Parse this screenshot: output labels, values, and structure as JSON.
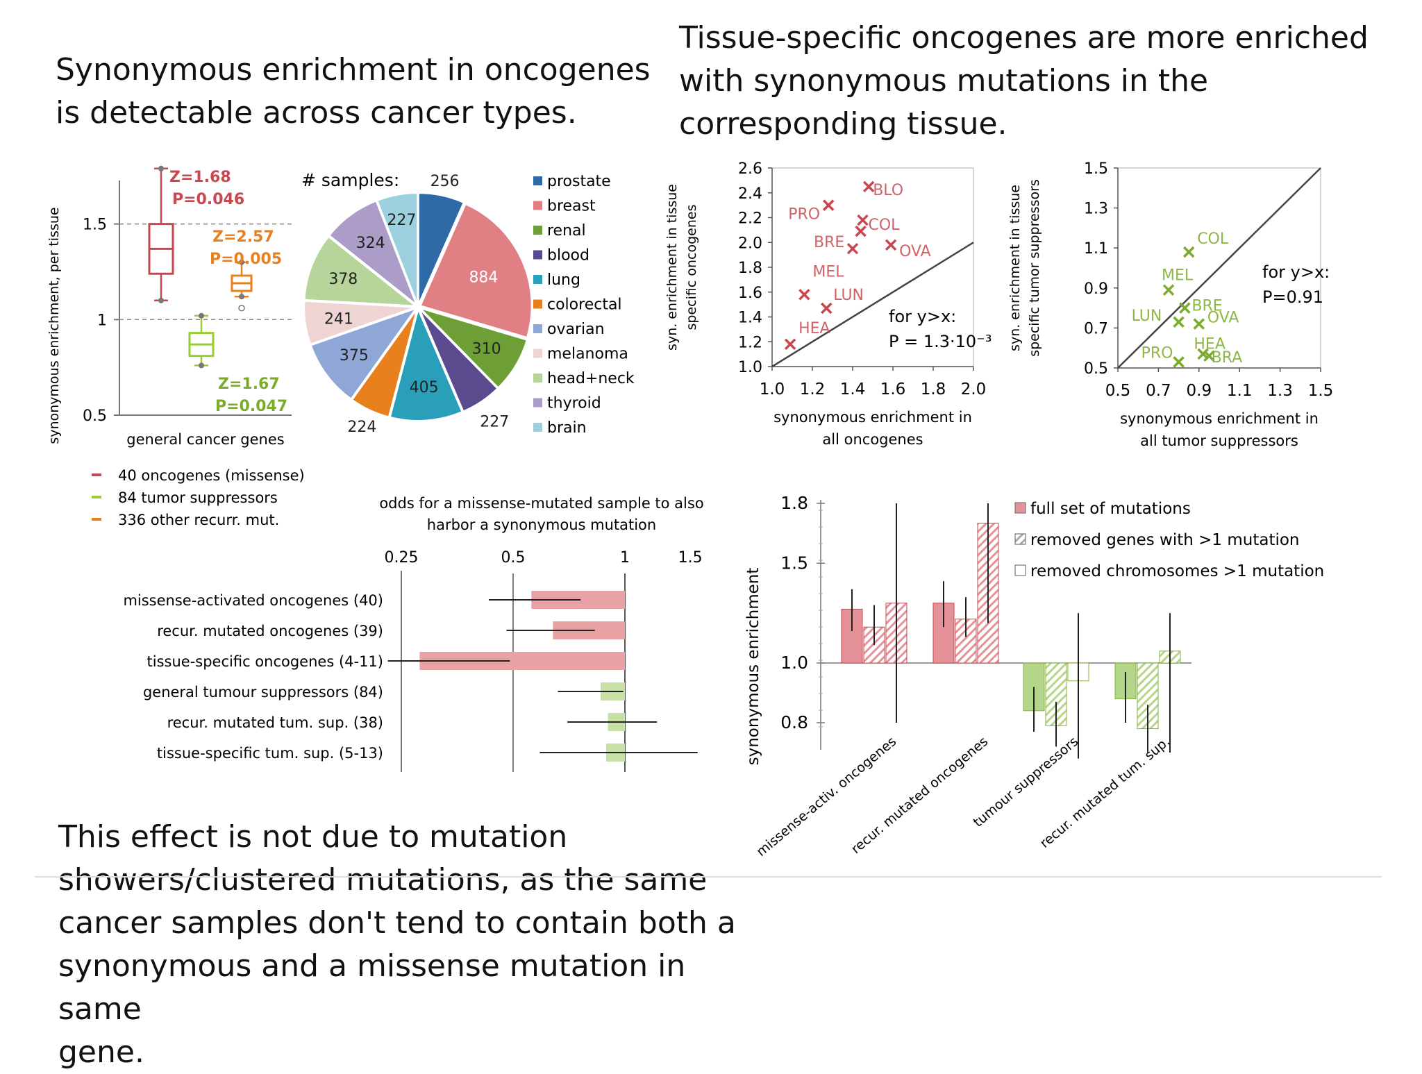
{
  "titles": {
    "t1": "Synonymous enrichment in oncogenes\nis detectable across cancer types.",
    "t2": "Tissue-specific oncogenes are more enriched\nwith synonymous mutations in the\ncorresponding tissue.",
    "t3": "This effect is not due to mutation\nshowers/clustered mutations, as the same\ncancer samples don't tend to contain both a\nsynonymous and a missense mutation in same\ngene."
  },
  "chart_data": [
    {
      "type": "box",
      "ylabel": "synonymous enrichment, per tissue",
      "xlabel": "general cancer genes",
      "yticks": [
        "1.5",
        "1",
        "0.5"
      ],
      "ylim": [
        0.5,
        1.8
      ],
      "series": [
        {
          "name": "40 oncogenes (missense)",
          "color": "#c8474f",
          "median": 1.37,
          "q1": 1.24,
          "q3": 1.5,
          "whisker_low": 1.1,
          "whisker_high": 1.79,
          "annotation": [
            "Z=1.68",
            "P=0.046"
          ]
        },
        {
          "name": "84 tumor suppressors",
          "color": "#9acd32",
          "median": 0.87,
          "q1": 0.81,
          "q3": 0.93,
          "whisker_low": 0.76,
          "whisker_high": 1.02,
          "annotation": [
            "Z=1.67",
            "P=0.047"
          ]
        },
        {
          "name": "336 other recurr. mut.",
          "color": "#e8801e",
          "median": 1.19,
          "q1": 1.15,
          "q3": 1.23,
          "whisker_low": 1.12,
          "whisker_high": 1.3,
          "outlier": 1.06,
          "annotation": [
            "Z=2.57",
            "P=0.005"
          ]
        }
      ]
    },
    {
      "type": "pie",
      "title": "# samples:",
      "labels": [
        "prostate",
        "breast",
        "renal",
        "blood",
        "lung",
        "colorectal",
        "ovarian",
        "melanoma",
        "head+neck",
        "thyroid",
        "brain"
      ],
      "values": [
        256,
        884,
        310,
        227,
        405,
        224,
        375,
        241,
        378,
        324,
        227
      ],
      "colors": [
        "#2e6aa8",
        "#e07f84",
        "#6e9e36",
        "#5a4b8f",
        "#2a9fb9",
        "#e8801e",
        "#8ea7d6",
        "#efd4d4",
        "#b7d49a",
        "#ab9cc8",
        "#9bd0df"
      ]
    },
    {
      "type": "bar",
      "orientation": "horizontal",
      "title": "odds for a missense-mutated sample to also harbor a synonymous mutation",
      "xticks": [
        "0.25",
        "0.5",
        "1",
        "1.5"
      ],
      "categories": [
        "missense-activated oncogenes (40)",
        "recur. mutated oncogenes (39)",
        "tissue-specific oncogenes (4-11)",
        "general tumour suppressors (84)",
        "recur. mutated tum. sup. (38)",
        "tissue-specific tum. sup. (5-13)"
      ],
      "values": [
        0.56,
        0.64,
        0.28,
        0.86,
        0.9,
        0.89
      ],
      "ci_low": [
        0.43,
        0.48,
        0.23,
        0.66,
        0.7,
        0.59
      ],
      "ci_high": [
        0.76,
        0.83,
        0.49,
        0.99,
        1.22,
        1.57
      ],
      "colors": [
        "#e8a1a4",
        "#e8a1a4",
        "#e8a1a4",
        "#c6e0a6",
        "#c6e0a6",
        "#c6e0a6"
      ]
    },
    {
      "type": "scatter",
      "xlabel": "synonymous enrichment in all oncogenes",
      "ylabel": "syn. enrichment in tissue specific oncogenes",
      "xticks": [
        "1.0",
        "1.2",
        "1.4",
        "1.6",
        "1.8",
        "2.0"
      ],
      "yticks": [
        "2.6",
        "2.4",
        "2.2",
        "2.0",
        "1.8",
        "1.6",
        "1.4",
        "1.2",
        "1.0"
      ],
      "xlim": [
        1.0,
        2.0
      ],
      "ylim": [
        1.0,
        2.6
      ],
      "annotation": [
        "for y>x:",
        "P = 1.3·10⁻³"
      ],
      "points": [
        {
          "label": "BLO",
          "x": 1.48,
          "y": 2.45
        },
        {
          "label": "PRO",
          "x": 1.28,
          "y": 2.3
        },
        {
          "label": "COL",
          "x": 1.45,
          "y": 2.18
        },
        {
          "label": "",
          "x": 1.44,
          "y": 2.09
        },
        {
          "label": "OVA",
          "x": 1.59,
          "y": 1.98
        },
        {
          "label": "BRE",
          "x": 1.4,
          "y": 1.95
        },
        {
          "label": "MEL",
          "x": 1.16,
          "y": 1.58
        },
        {
          "label": "LUN",
          "x": 1.27,
          "y": 1.47
        },
        {
          "label": "HEA",
          "x": 1.09,
          "y": 1.18
        }
      ],
      "point_color": "#c8474f"
    },
    {
      "type": "scatter",
      "xlabel": "synonymous enrichment in all tumor suppressors",
      "ylabel": "syn. enrichment in tissue specific tumor suppressors",
      "xticks": [
        "0.5",
        "0.7",
        "0.9",
        "1.1",
        "1.3",
        "1.5"
      ],
      "yticks": [
        "1.5",
        "1.3",
        "1.1",
        "0.9",
        "0.7",
        "0.5"
      ],
      "xlim": [
        0.5,
        1.5
      ],
      "ylim": [
        0.5,
        1.5
      ],
      "annotation": [
        "for y>x:",
        "P=0.91"
      ],
      "points": [
        {
          "label": "COL",
          "x": 0.85,
          "y": 1.08
        },
        {
          "label": "MEL",
          "x": 0.75,
          "y": 0.89
        },
        {
          "label": "BRE",
          "x": 0.83,
          "y": 0.8
        },
        {
          "label": "LUN",
          "x": 0.8,
          "y": 0.73
        },
        {
          "label": "OVA",
          "x": 0.9,
          "y": 0.72
        },
        {
          "label": "PRO",
          "x": 0.8,
          "y": 0.53
        },
        {
          "label": "HEA",
          "x": 0.95,
          "y": 0.56
        },
        {
          "label": "BRA",
          "x": 0.92,
          "y": 0.57
        }
      ],
      "point_color": "#7aab2a"
    },
    {
      "type": "bar",
      "ylabel": "synonymous enrichment",
      "yticks": [
        "1.8",
        "1.5",
        "1.0",
        "0.8"
      ],
      "ylim": [
        0.7,
        1.9
      ],
      "categories": [
        "missense-activ. oncogenes",
        "recur. mutated oncogenes",
        "tumour suppressors",
        "recur. mutated tum. sup."
      ],
      "series": [
        {
          "name": "full set of mutations",
          "values": [
            1.27,
            1.3,
            0.84,
            0.88
          ],
          "ci_low": [
            1.16,
            1.18,
            0.77,
            0.8
          ],
          "ci_high": [
            1.37,
            1.41,
            0.92,
            0.97
          ]
        },
        {
          "name": "removed genes with >1 mutation",
          "values": [
            1.18,
            1.22,
            0.79,
            0.78
          ],
          "ci_low": [
            1.09,
            1.13,
            0.72,
            0.7
          ],
          "ci_high": [
            1.29,
            1.33,
            0.87,
            0.86
          ]
        },
        {
          "name": "removed chromosomes >1 mutation",
          "values": [
            1.3,
            1.7,
            0.94,
            1.06
          ],
          "ci_low": [
            0.8,
            1.2,
            0.68,
            0.7
          ],
          "ci_high": [
            1.8,
            1.8,
            1.25,
            1.25
          ]
        }
      ],
      "colors": {
        "onco": "#e49298",
        "tsg": "#b5d58a"
      }
    }
  ]
}
